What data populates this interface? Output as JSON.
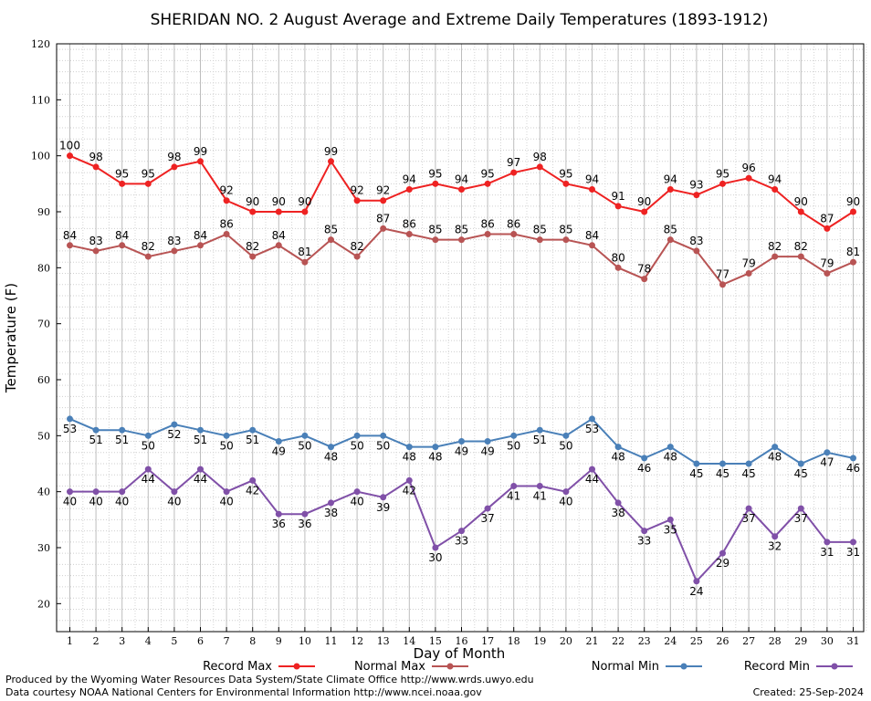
{
  "chart_data": {
    "type": "line",
    "title": "SHERIDAN NO. 2 August Average and Extreme Daily Temperatures (1893-1912)",
    "xlabel": "Day of Month",
    "ylabel": "Temperature (F)",
    "ylim": [
      15,
      120
    ],
    "yticks": [
      20,
      30,
      40,
      50,
      60,
      70,
      80,
      90,
      100,
      110,
      120
    ],
    "x": [
      1,
      2,
      3,
      4,
      5,
      6,
      7,
      8,
      9,
      10,
      11,
      12,
      13,
      14,
      15,
      16,
      17,
      18,
      19,
      20,
      21,
      22,
      23,
      24,
      25,
      26,
      27,
      28,
      29,
      30,
      31
    ],
    "grid": true,
    "legend_position": "bottom",
    "series": [
      {
        "name": "Record Max",
        "color": "#ee2222",
        "values": [
          100,
          98,
          95,
          95,
          98,
          99,
          92,
          90,
          90,
          90,
          99,
          92,
          92,
          94,
          95,
          94,
          95,
          97,
          98,
          95,
          94,
          91,
          90,
          94,
          93,
          95,
          96,
          94,
          90,
          87,
          90
        ]
      },
      {
        "name": "Normal Max",
        "color": "#b85454",
        "values": [
          84,
          83,
          84,
          82,
          83,
          84,
          86,
          82,
          84,
          81,
          85,
          82,
          87,
          86,
          85,
          85,
          86,
          86,
          85,
          85,
          84,
          80,
          78,
          85,
          83,
          77,
          79,
          82,
          82,
          79,
          81
        ]
      },
      {
        "name": "Normal Min",
        "color": "#4a80b8",
        "values": [
          53,
          51,
          51,
          50,
          52,
          51,
          50,
          51,
          49,
          50,
          48,
          50,
          50,
          48,
          48,
          49,
          49,
          50,
          51,
          50,
          53,
          48,
          46,
          48,
          45,
          45,
          45,
          48,
          45,
          47,
          46
        ]
      },
      {
        "name": "Record Min",
        "color": "#8050a8",
        "values": [
          40,
          40,
          40,
          44,
          40,
          44,
          40,
          42,
          36,
          36,
          38,
          40,
          39,
          42,
          30,
          33,
          37,
          41,
          41,
          40,
          44,
          38,
          33,
          35,
          24,
          29,
          37,
          32,
          37,
          31,
          31
        ]
      }
    ]
  },
  "footer": {
    "line1": "Produced by the Wyoming Water Resources Data System/State Climate Office http://www.wrds.uwyo.edu",
    "line2": "Data courtesy NOAA National Centers for Environmental Information http://www.ncei.noaa.gov",
    "created": "Created:  25-Sep-2024"
  }
}
